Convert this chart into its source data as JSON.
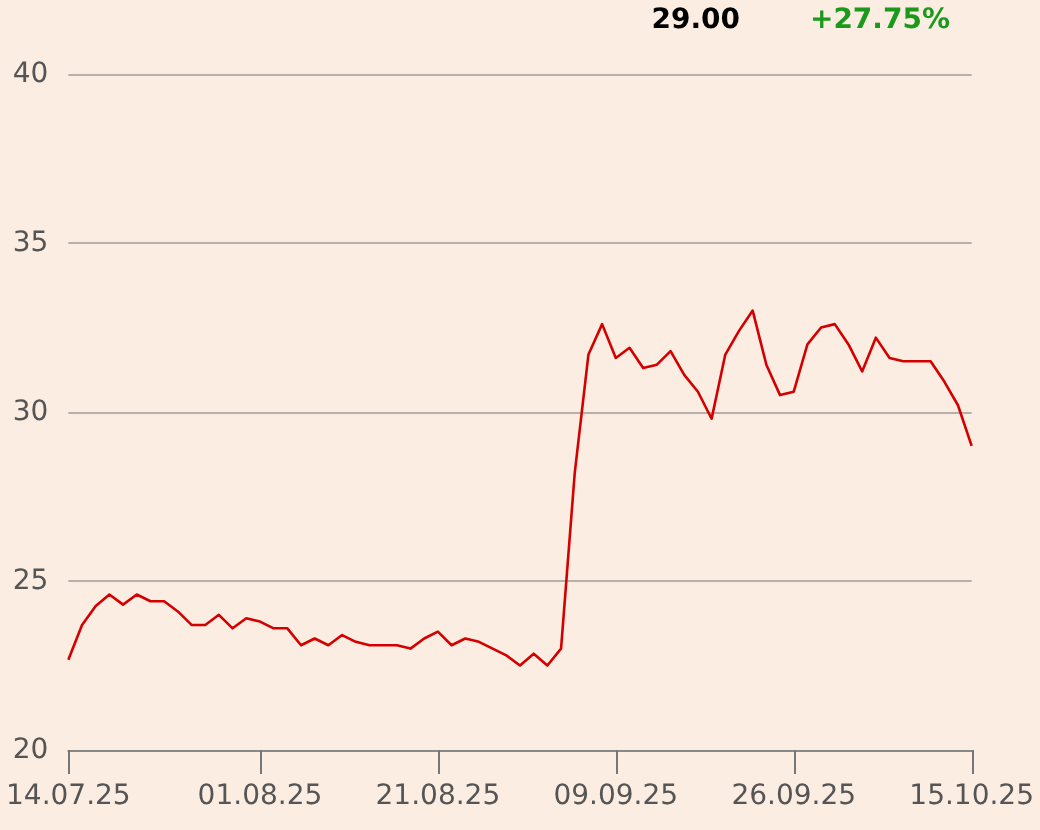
{
  "chart_data": {
    "type": "line",
    "annotations": [
      "29.00",
      "+27.75%"
    ],
    "categories": [
      "14.07.25",
      null,
      null,
      null,
      null,
      null,
      null,
      null,
      null,
      null,
      null,
      null,
      null,
      null,
      "01.08.25",
      null,
      null,
      null,
      null,
      null,
      null,
      null,
      null,
      null,
      null,
      null,
      null,
      "21.08.25",
      null,
      null,
      null,
      null,
      null,
      null,
      null,
      null,
      null,
      null,
      null,
      null,
      "09.09.25",
      null,
      null,
      null,
      null,
      null,
      null,
      null,
      null,
      null,
      null,
      null,
      null,
      "26.09.25",
      null,
      null,
      null,
      null,
      null,
      null,
      null,
      null,
      null,
      null,
      null,
      null,
      "15.10.25"
    ],
    "ylim": [
      20,
      40
    ],
    "yticks": [
      20,
      25,
      30,
      35,
      40
    ],
    "grid": "y",
    "marker": "none",
    "series": [
      {
        "color": "#d40000",
        "values": [
          22.67,
          23.7,
          24.26,
          24.6,
          24.3,
          24.6,
          24.4,
          24.4,
          24.1,
          23.7,
          23.7,
          24.0,
          23.6,
          23.9,
          23.8,
          23.6,
          23.6,
          23.1,
          23.3,
          23.1,
          23.4,
          23.2,
          23.1,
          23.1,
          23.1,
          23.0,
          23.3,
          23.5,
          23.1,
          23.3,
          23.2,
          23.0,
          22.8,
          22.5,
          22.85,
          22.5,
          23.0,
          28.2,
          31.7,
          32.6,
          31.6,
          31.9,
          31.3,
          31.4,
          31.8,
          31.1,
          30.6,
          29.8,
          31.7,
          32.4,
          33.0,
          31.4,
          30.5,
          30.6,
          32.0,
          32.5,
          32.6,
          32.0,
          31.2,
          32.2,
          31.6,
          31.5,
          31.5,
          31.5,
          30.9,
          30.2,
          29.0
        ]
      }
    ]
  }
}
